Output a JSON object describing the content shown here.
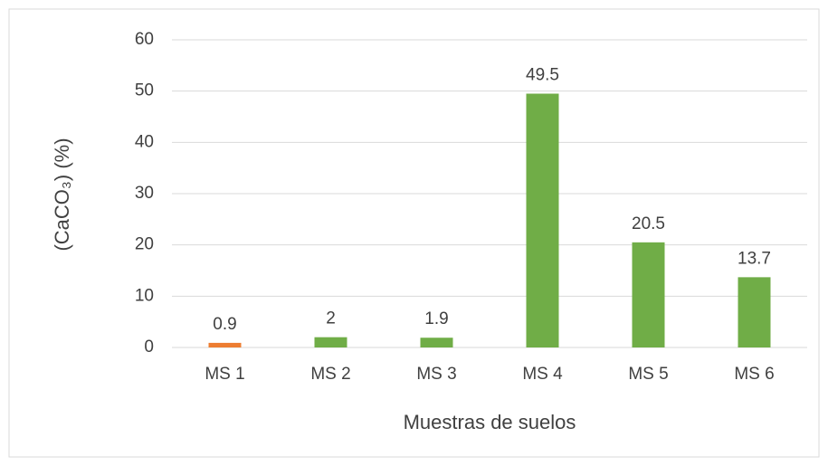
{
  "chart_data": {
    "type": "bar",
    "x_label": "Muestras de suelos",
    "y_label": "(CaCO₃) (%)",
    "categories": [
      "MS 1",
      "MS 2",
      "MS 3",
      "MS 4",
      "MS 5",
      "MS 6"
    ],
    "values": [
      0.9,
      2,
      1.9,
      49.5,
      20.5,
      13.7
    ],
    "colors": [
      "#ed7d31",
      "#70ad47",
      "#70ad47",
      "#70ad47",
      "#70ad47",
      "#70ad47"
    ],
    "ylim": [
      0,
      60
    ],
    "yticks": [
      0,
      10,
      20,
      30,
      40,
      50,
      60
    ],
    "grid": true
  }
}
